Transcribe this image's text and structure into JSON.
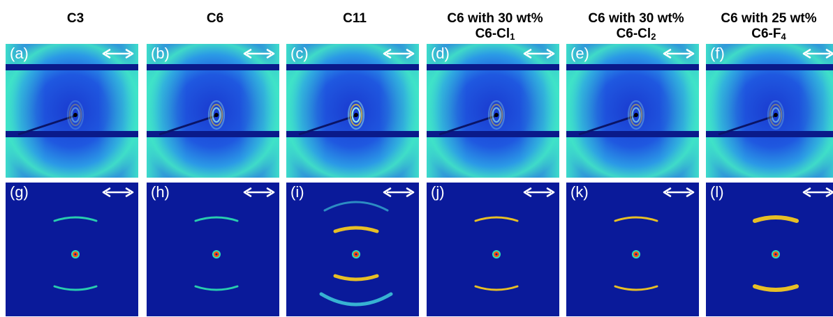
{
  "columns": [
    {
      "line1": "",
      "line2": "C3",
      "sub": ""
    },
    {
      "line1": "",
      "line2": "C6",
      "sub": ""
    },
    {
      "line1": "",
      "line2": "C11",
      "sub": ""
    },
    {
      "line1": "C6 with 30 wt%",
      "line2": "C6-Cl",
      "sub": "1"
    },
    {
      "line1": "C6 with 30 wt%",
      "line2": "C6-Cl",
      "sub": "2"
    },
    {
      "line1": "C6 with 25 wt%",
      "line2": "C6-F",
      "sub": "4"
    }
  ],
  "panels_top": [
    {
      "label": "(a)",
      "variant": "waxs",
      "ring_strength": 0.4
    },
    {
      "label": "(b)",
      "variant": "waxs",
      "ring_strength": 0.7
    },
    {
      "label": "(c)",
      "variant": "waxs",
      "ring_strength": 0.9
    },
    {
      "label": "(d)",
      "variant": "waxs",
      "ring_strength": 0.6
    },
    {
      "label": "(e)",
      "variant": "waxs",
      "ring_strength": 0.6
    },
    {
      "label": "(f)",
      "variant": "waxs",
      "ring_strength": 0.5
    }
  ],
  "panels_bottom": [
    {
      "label": "(g)",
      "variant": "saxs",
      "arc": "thin"
    },
    {
      "label": "(h)",
      "variant": "saxs",
      "arc": "thin"
    },
    {
      "label": "(i)",
      "variant": "saxs",
      "arc": "strong"
    },
    {
      "label": "(j)",
      "variant": "saxs",
      "arc": "medium"
    },
    {
      "label": "(k)",
      "variant": "saxs",
      "arc": "medium"
    },
    {
      "label": "(l)",
      "variant": "saxs",
      "arc": "diffuse"
    }
  ],
  "colors": {
    "deep": "#0a1a8a",
    "mid": "#1f5fe0",
    "bright": "#3fe7c8",
    "hot": "#ffd21a"
  },
  "arrow_icon": "double-headed-horizontal-arrow"
}
